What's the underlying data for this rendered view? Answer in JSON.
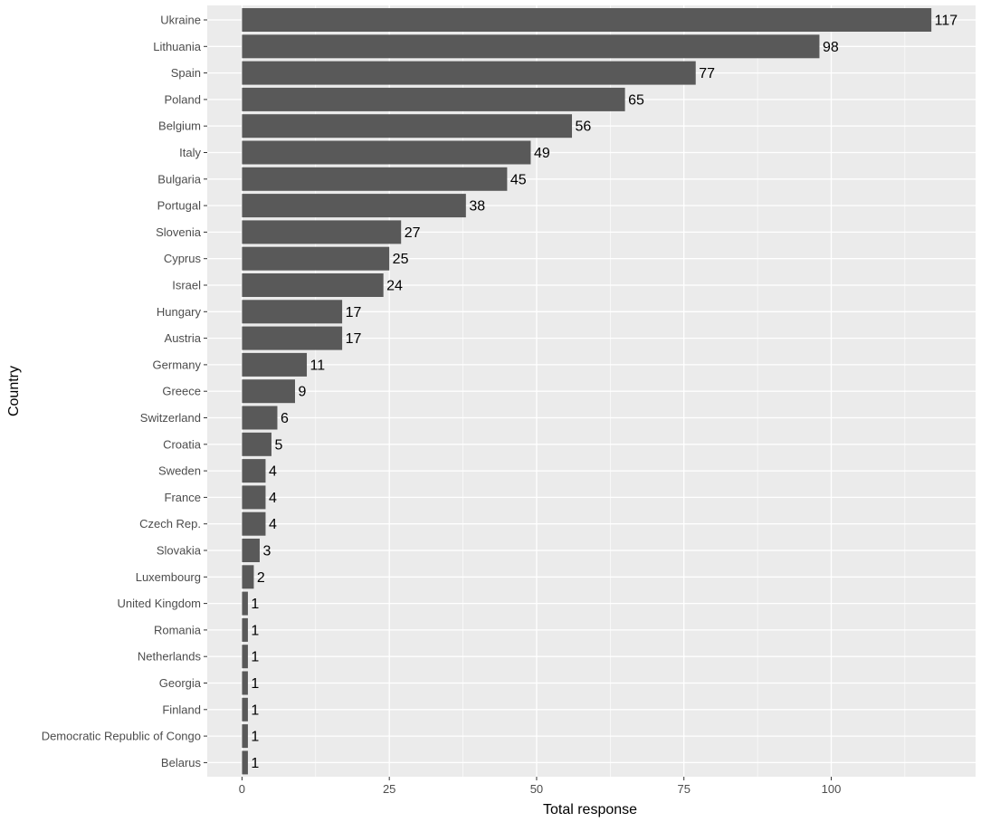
{
  "chart_data": {
    "type": "bar",
    "orientation": "horizontal",
    "xlabel": "Total response",
    "ylabel": "Country",
    "xlim": [
      -5.9,
      124.5
    ],
    "x_ticks": [
      0,
      25,
      50,
      75,
      100
    ],
    "x_minor_ticks": [
      12.5,
      37.5,
      62.5,
      87.5,
      112.5
    ],
    "grid": true,
    "legend": "none",
    "categories": [
      "Ukraine",
      "Lithuania",
      "Spain",
      "Poland",
      "Belgium",
      "Italy",
      "Bulgaria",
      "Portugal",
      "Slovenia",
      "Cyprus",
      "Israel",
      "Hungary",
      "Austria",
      "Germany",
      "Greece",
      "Switzerland",
      "Croatia",
      "Sweden",
      "France",
      "Czech Rep.",
      "Slovakia",
      "Luxembourg",
      "United Kingdom",
      "Romania",
      "Netherlands",
      "Georgia",
      "Finland",
      "Democratic Republic of Congo",
      "Belarus"
    ],
    "values": [
      117,
      98,
      77,
      65,
      56,
      49,
      45,
      38,
      27,
      25,
      24,
      17,
      17,
      11,
      9,
      6,
      5,
      4,
      4,
      4,
      3,
      2,
      1,
      1,
      1,
      1,
      1,
      1,
      1
    ],
    "colors": {
      "panel": "#ebebeb",
      "grid_major": "#ffffff",
      "bar": "#595959",
      "tick": "#333333",
      "text": "#4d4d4d"
    }
  }
}
